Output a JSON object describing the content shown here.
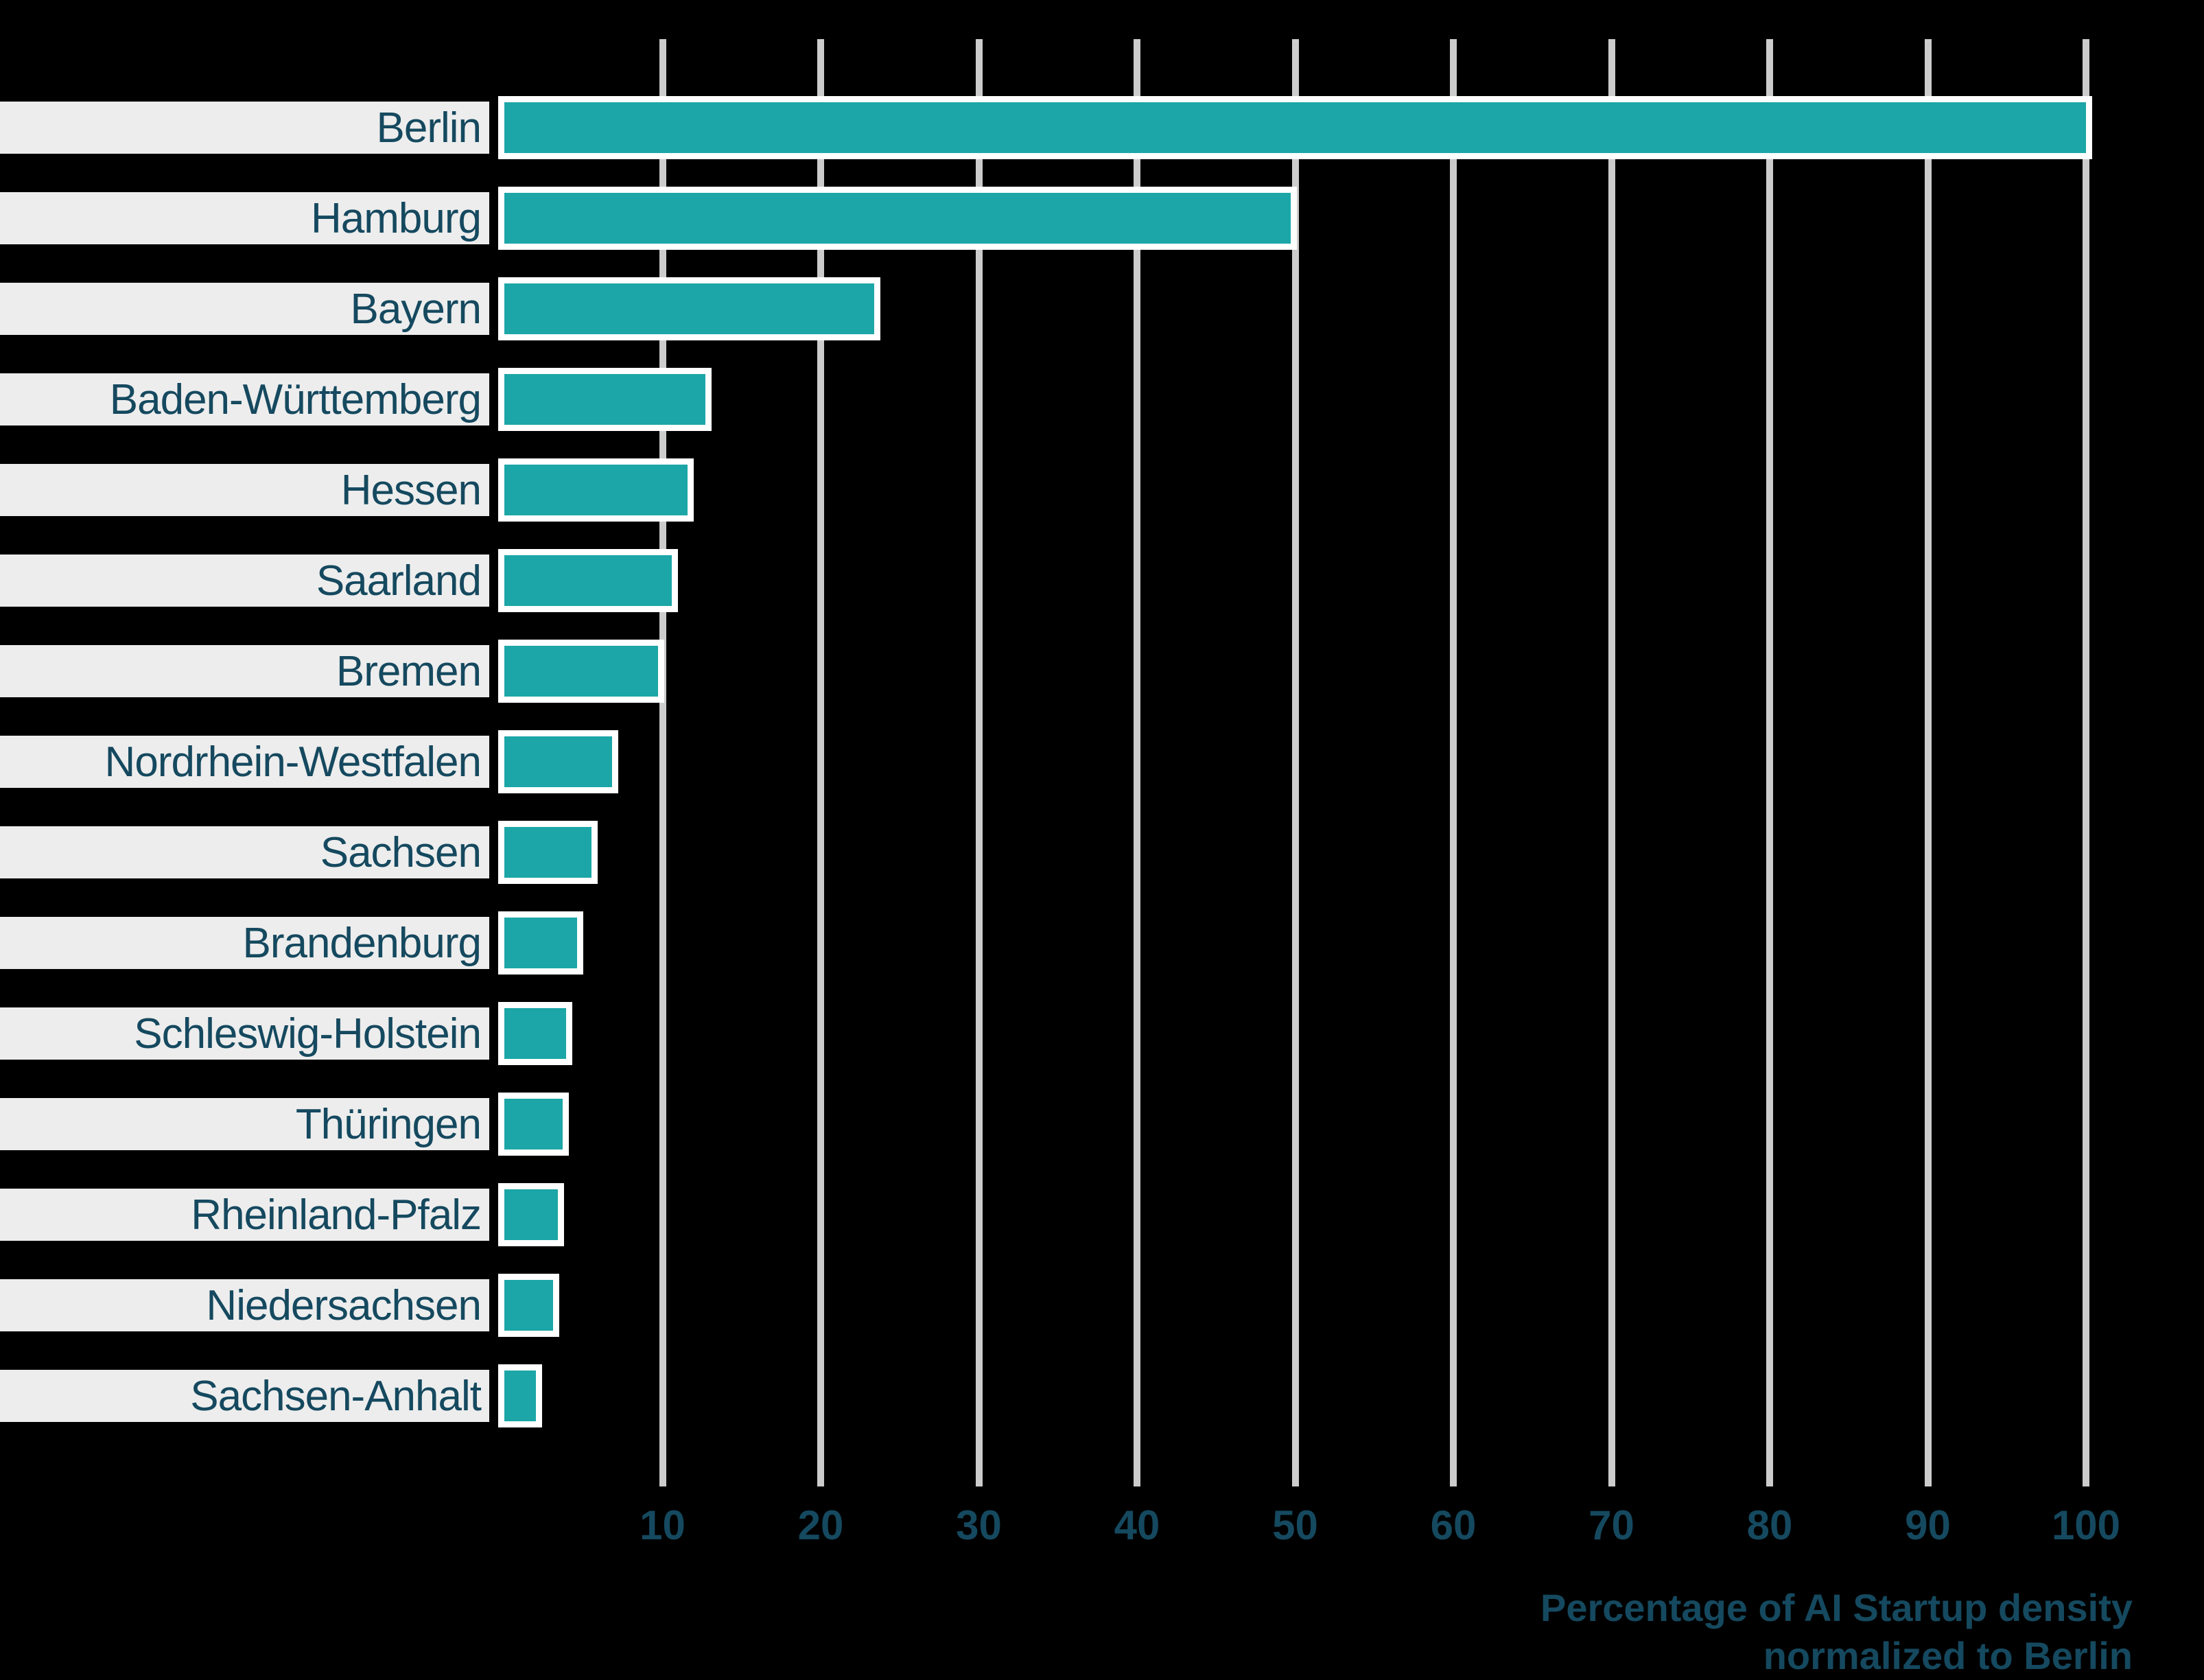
{
  "chart_data": {
    "type": "bar",
    "orientation": "horizontal",
    "title": "",
    "categories": [
      "Berlin",
      "Hamburg",
      "Bayern",
      "Baden-Württemberg",
      "Hessen",
      "Saarland",
      "Bremen",
      "Nordrhein-Westfalen",
      "Sachsen",
      "Brandenburg",
      "Schleswig-Holstein",
      "Thüringen",
      "Rheinland-Pfalz",
      "Niedersachsen",
      "Sachsen-Anhalt"
    ],
    "values": [
      100,
      49.7,
      23.4,
      12.7,
      11.6,
      10.6,
      9.7,
      6.8,
      5.5,
      4.6,
      3.9,
      3.7,
      3.4,
      3.1,
      2.0
    ],
    "xlabel_line1": "Percentage of AI Startup density",
    "xlabel_line2": "normalized to Berlin",
    "ylabel": "",
    "x_ticks": [
      10,
      20,
      30,
      40,
      50,
      60,
      70,
      80,
      90,
      100
    ],
    "xlim": [
      0,
      105
    ],
    "grid": true,
    "legend": "none",
    "colors": {
      "bar_fill": "#1CA6A7",
      "bar_border": "#FFFFFF",
      "label_box_bg": "#EDEDED",
      "text": "#15495F",
      "gridline": "#CCCCCC",
      "background": "#000000"
    }
  }
}
